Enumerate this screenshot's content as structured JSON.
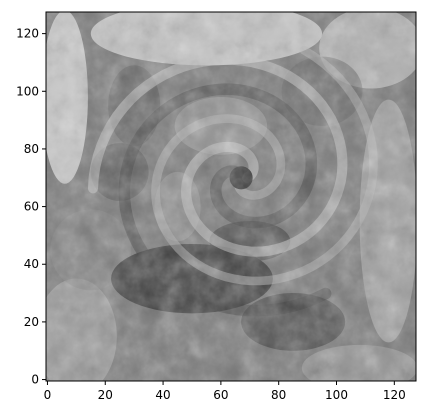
{
  "chart_data": {
    "type": "heatmap",
    "title": "",
    "xlabel": "",
    "ylabel": "",
    "colormap": "gray",
    "image_shape": [
      128,
      128
    ],
    "xlim": [
      -0.5,
      127.5
    ],
    "ylim": [
      127.5,
      -0.5
    ],
    "x_ticks": [
      0,
      20,
      40,
      60,
      80,
      100,
      120
    ],
    "y_ticks": [
      0,
      20,
      40,
      60,
      80,
      100,
      120
    ],
    "grid": false,
    "features": {
      "vortex_center": [
        67,
        70
      ],
      "dark_band_center": [
        50,
        35
      ],
      "bright_lower_region": [
        55,
        120
      ]
    }
  }
}
